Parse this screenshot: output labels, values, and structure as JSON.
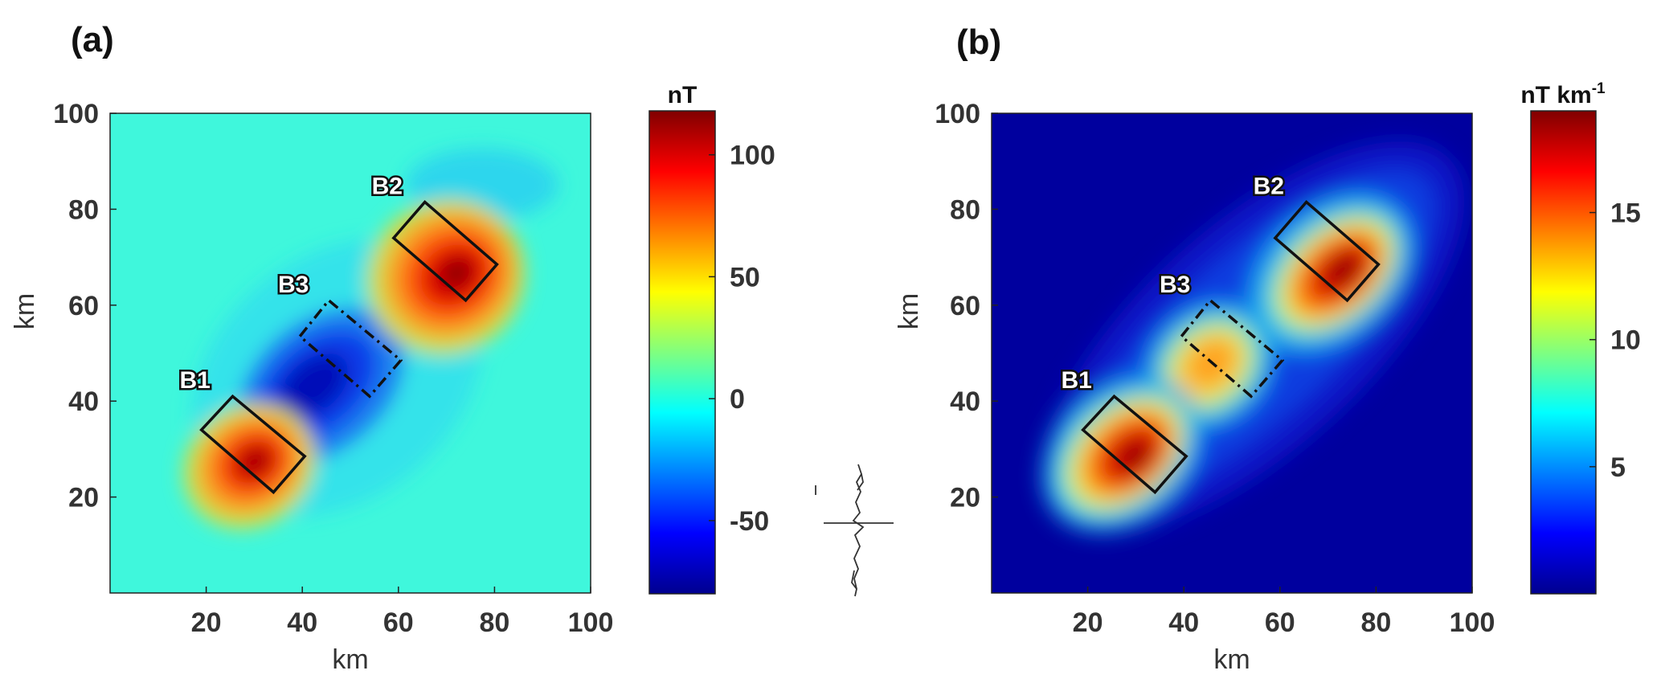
{
  "figure": {
    "panel_a_label": "(a)",
    "panel_b_label": "(b)"
  },
  "chart_data": [
    {
      "type": "heatmap",
      "panel": "(a)",
      "xlabel": "km",
      "ylabel": "km",
      "xlim": [
        0,
        100
      ],
      "ylim": [
        0,
        100
      ],
      "xticks": [
        "20",
        "40",
        "60",
        "80",
        "100"
      ],
      "yticks": [
        "20",
        "40",
        "60",
        "80",
        "100"
      ],
      "colorbar": {
        "title": "nT",
        "range": [
          -80,
          118
        ],
        "ticks": [
          "100",
          "50",
          "0",
          "-50"
        ],
        "colormap": "jet"
      },
      "anomalies": [
        {
          "name": "B1",
          "center_km": [
            30,
            28
          ],
          "peak_value": 105
        },
        {
          "name": "B2",
          "center_km": [
            70,
            67
          ],
          "peak_value": 118
        },
        {
          "name": "B3",
          "center_km": [
            47,
            45
          ],
          "peak_value": -80
        },
        {
          "name": "B2 low lobe",
          "center_km": [
            78,
            86
          ],
          "peak_value": -15
        }
      ],
      "bodies": [
        {
          "label": "B1",
          "outline": "solid",
          "corners_km": [
            [
              19,
              34
            ],
            [
              25.5,
              41
            ],
            [
              40.5,
              28.5
            ],
            [
              34,
              21
            ]
          ]
        },
        {
          "label": "B2",
          "outline": "solid",
          "corners_km": [
            [
              59,
              74
            ],
            [
              65.5,
              81.5
            ],
            [
              80.5,
              68.5
            ],
            [
              74,
              61
            ]
          ]
        },
        {
          "label": "B3",
          "outline": "dash-dot",
          "corners_km": [
            [
              39.5,
              53.5
            ],
            [
              45.5,
              61
            ],
            [
              60.5,
              48.5
            ],
            [
              54,
              41
            ]
          ]
        }
      ],
      "grid": false
    },
    {
      "type": "heatmap",
      "panel": "(b)",
      "xlabel": "km",
      "ylabel": "km",
      "xlim": [
        0,
        100
      ],
      "ylim": [
        0,
        100
      ],
      "xticks": [
        "20",
        "40",
        "60",
        "80",
        "100"
      ],
      "yticks": [
        "20",
        "40",
        "60",
        "80",
        "100"
      ],
      "colorbar": {
        "title": "nT km",
        "title_superscript": "-1",
        "range": [
          0,
          19
        ],
        "ticks": [
          "15",
          "10",
          "5"
        ],
        "colormap": "jet"
      },
      "anomalies": [
        {
          "name": "B1",
          "center_km": [
            30,
            28
          ],
          "peak_value": 19
        },
        {
          "name": "B2",
          "center_km": [
            70,
            67
          ],
          "peak_value": 19
        },
        {
          "name": "B3",
          "center_km": [
            48,
            48
          ],
          "peak_value": 13
        }
      ],
      "bodies": [
        {
          "label": "B1",
          "outline": "solid",
          "corners_km": [
            [
              19,
              34
            ],
            [
              25.5,
              41
            ],
            [
              40.5,
              28.5
            ],
            [
              34,
              21
            ]
          ]
        },
        {
          "label": "B2",
          "outline": "solid",
          "corners_km": [
            [
              59,
              74
            ],
            [
              65.5,
              81.5
            ],
            [
              80.5,
              68.5
            ],
            [
              74,
              61
            ]
          ]
        },
        {
          "label": "B3",
          "outline": "dash-dot",
          "corners_km": [
            [
              39.5,
              53.5
            ],
            [
              45.5,
              61
            ],
            [
              60.5,
              48.5
            ],
            [
              54,
              41
            ]
          ]
        }
      ],
      "grid": false
    }
  ],
  "colors": {
    "jet_dark_blue": "#00008f",
    "jet_blue": "#0000ff",
    "jet_cyan": "#00ffff",
    "jet_yellow": "#ffff00",
    "jet_red": "#ff0000",
    "jet_dark_red": "#800000",
    "outline": "#111111"
  }
}
